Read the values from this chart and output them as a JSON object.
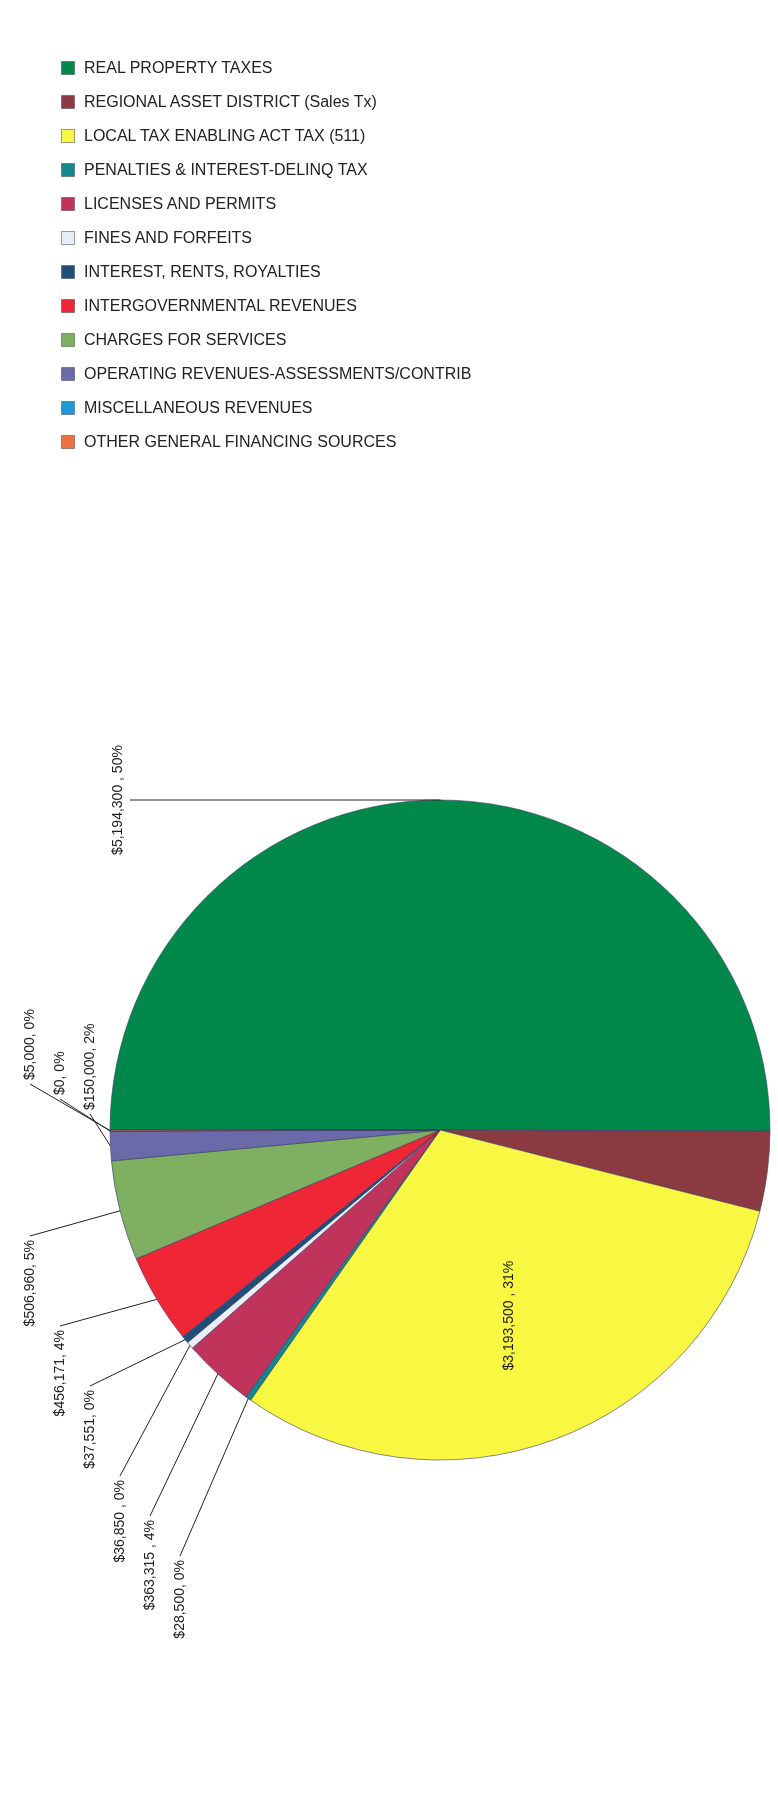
{
  "chart_data": {
    "type": "pie",
    "categories": [
      "REAL PROPERTY TAXES",
      "REGIONAL ASSET DISTRICT (Sales Tx)",
      "LOCAL TAX ENABLING ACT TAX (511)",
      "PENALTIES & INTEREST-DELINQ TAX",
      "LICENSES AND PERMITS",
      "FINES AND FORFEITS",
      "INTEREST, RENTS, ROYALTIES",
      "INTERGOVERNMENTAL REVENUES",
      "CHARGES FOR SERVICES",
      "OPERATING REVENUES-ASSESSMENTS/CONTRIB",
      "MISCELLANEOUS REVENUES",
      "OTHER GENERAL FINANCING SOURCES"
    ],
    "values": [
      5194300,
      405000,
      3193500,
      28500,
      363315,
      36850,
      37551,
      456171,
      506960,
      150000,
      0,
      5000
    ],
    "colors": [
      "#00884a",
      "#8b3a42",
      "#f8f842",
      "#12888e",
      "#c0335a",
      "#e8eef4",
      "#1f4e79",
      "#ee2636",
      "#7fb061",
      "#6a6aa8",
      "#1e9ad6",
      "#f07040"
    ],
    "value_labels": [
      "$5,194,300 , 50%",
      null,
      "$3,193,500 , 31%",
      "$28,500, 0%",
      "$363,315 , 4%",
      "$36,850 , 0%",
      "$37,551, 0%",
      "$456,171, 4%",
      "$506,960, 5%",
      "$150,000, 2%",
      "$0, 0%",
      "$5,000, 0%"
    ],
    "legend": "top"
  }
}
